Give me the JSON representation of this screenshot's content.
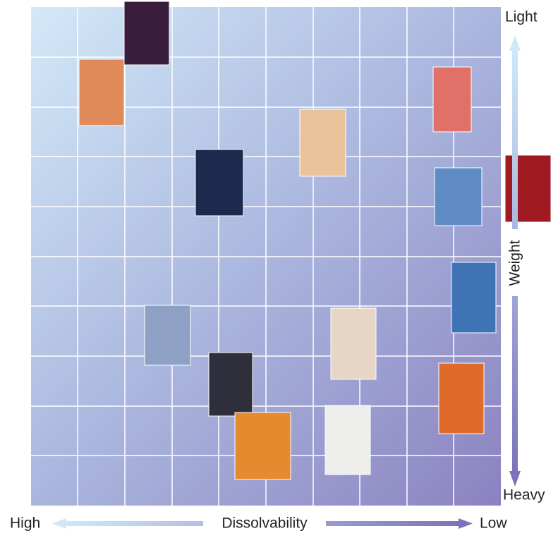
{
  "axes": {
    "y_top": "Light",
    "y_bottom": "Heavy",
    "y_title": "Weight",
    "x_left": "High",
    "x_title": "Dissolvability",
    "x_right": "Low"
  }
}
